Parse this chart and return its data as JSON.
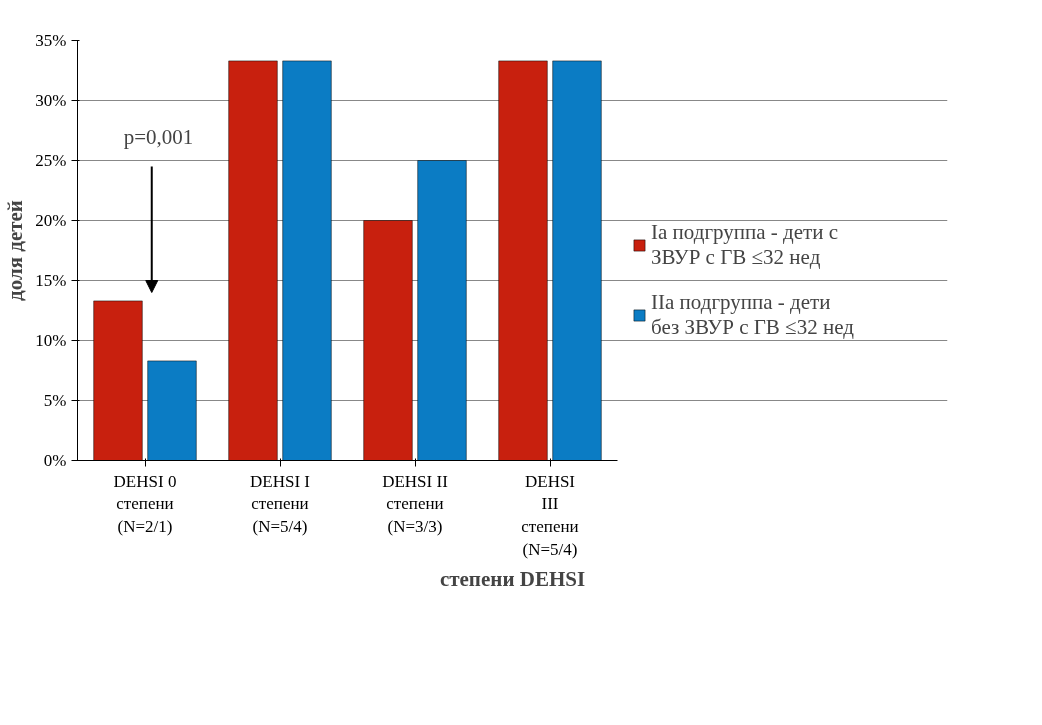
{
  "chart_data": {
    "type": "bar",
    "xlabel": "степени DEHSI",
    "ylabel": "доля детей",
    "categories": [
      "DEHSI 0 степени (N=2/1)",
      "DEHSI I степени (N=5/4)",
      "DEHSI II степени (N=3/3)",
      "DEHSI III степени (N=5/4)"
    ],
    "series": [
      {
        "name": "Ia подгруппа - дети с ЗВУР с ГВ ≤32 нед",
        "color": "#c8200e",
        "values": [
          13.3,
          33.3,
          20,
          33.3
        ]
      },
      {
        "name": "IIa подгруппа - дети без ЗВУР с ГВ ≤32 нед",
        "color": "#0b7cc4",
        "values": [
          8.3,
          33.3,
          25,
          33.3
        ]
      }
    ],
    "ylim": [
      0,
      35
    ],
    "yticks": [
      {
        "value": 0,
        "label": "0%"
      },
      {
        "value": 5,
        "label": "5%"
      },
      {
        "value": 10,
        "label": "10%"
      },
      {
        "value": 15,
        "label": "15%"
      },
      {
        "value": 20,
        "label": "20%"
      },
      {
        "value": 25,
        "label": "25%"
      },
      {
        "value": 30,
        "label": "30%"
      },
      {
        "value": 35,
        "label": "35%"
      }
    ],
    "grid": "y",
    "legend": "right",
    "annotations": [
      "p=0,001"
    ]
  }
}
